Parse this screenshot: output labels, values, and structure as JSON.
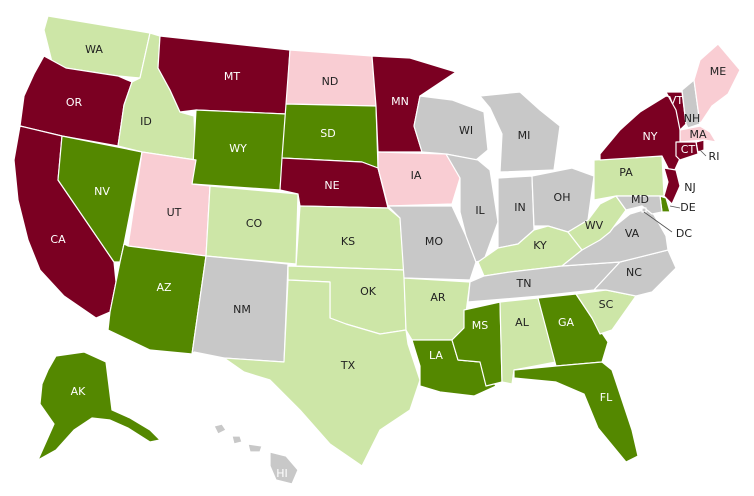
{
  "colors": {
    "dark_red": "#7b0022",
    "pink": "#f9cdd3",
    "dark_green": "#548800",
    "light_green": "#cde6a7",
    "gray": "#c8c8c8"
  },
  "states": [
    {
      "code": "WA",
      "category": "light_green"
    },
    {
      "code": "OR",
      "category": "dark_red"
    },
    {
      "code": "CA",
      "category": "dark_red"
    },
    {
      "code": "ID",
      "category": "light_green"
    },
    {
      "code": "NV",
      "category": "dark_green"
    },
    {
      "code": "MT",
      "category": "dark_red"
    },
    {
      "code": "WY",
      "category": "dark_green"
    },
    {
      "code": "UT",
      "category": "pink"
    },
    {
      "code": "AZ",
      "category": "dark_green"
    },
    {
      "code": "CO",
      "category": "light_green"
    },
    {
      "code": "NM",
      "category": "gray"
    },
    {
      "code": "ND",
      "category": "pink"
    },
    {
      "code": "SD",
      "category": "dark_green"
    },
    {
      "code": "NE",
      "category": "dark_red"
    },
    {
      "code": "KS",
      "category": "light_green"
    },
    {
      "code": "OK",
      "category": "light_green"
    },
    {
      "code": "TX",
      "category": "light_green"
    },
    {
      "code": "MN",
      "category": "dark_red"
    },
    {
      "code": "IA",
      "category": "pink"
    },
    {
      "code": "MO",
      "category": "gray"
    },
    {
      "code": "AR",
      "category": "light_green"
    },
    {
      "code": "LA",
      "category": "dark_green"
    },
    {
      "code": "WI",
      "category": "gray"
    },
    {
      "code": "IL",
      "category": "gray"
    },
    {
      "code": "MI",
      "category": "gray"
    },
    {
      "code": "IN",
      "category": "gray"
    },
    {
      "code": "OH",
      "category": "gray"
    },
    {
      "code": "KY",
      "category": "light_green"
    },
    {
      "code": "TN",
      "category": "gray"
    },
    {
      "code": "MS",
      "category": "dark_green"
    },
    {
      "code": "AL",
      "category": "light_green"
    },
    {
      "code": "GA",
      "category": "dark_green"
    },
    {
      "code": "FL",
      "category": "dark_green"
    },
    {
      "code": "SC",
      "category": "light_green"
    },
    {
      "code": "NC",
      "category": "gray"
    },
    {
      "code": "VA",
      "category": "gray"
    },
    {
      "code": "WV",
      "category": "light_green"
    },
    {
      "code": "PA",
      "category": "light_green"
    },
    {
      "code": "NY",
      "category": "dark_red"
    },
    {
      "code": "VT",
      "category": "dark_red"
    },
    {
      "code": "NH",
      "category": "gray"
    },
    {
      "code": "ME",
      "category": "pink"
    },
    {
      "code": "MA",
      "category": "pink"
    },
    {
      "code": "RI",
      "category": "dark_red"
    },
    {
      "code": "CT",
      "category": "dark_red"
    },
    {
      "code": "NJ",
      "category": "dark_red"
    },
    {
      "code": "DE",
      "category": "dark_green"
    },
    {
      "code": "MD",
      "category": "gray"
    },
    {
      "code": "DC",
      "category": "gray"
    },
    {
      "code": "AK",
      "category": "dark_green"
    },
    {
      "code": "HI",
      "category": "gray"
    }
  ]
}
